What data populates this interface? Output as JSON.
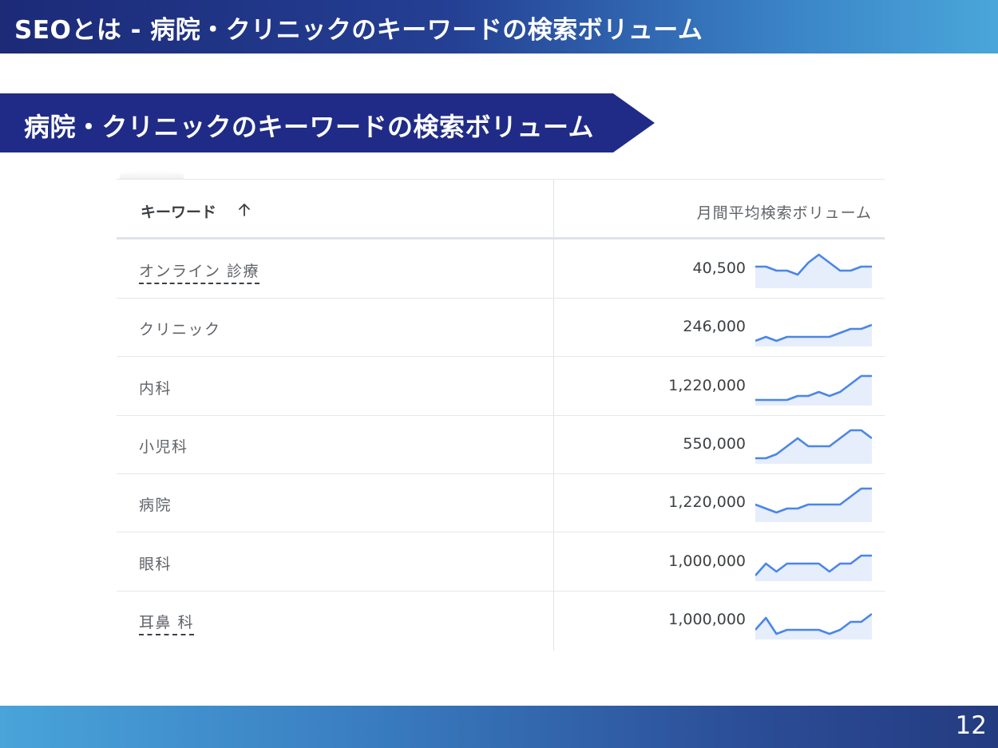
{
  "header": {
    "title": "SEOとは - 病院・クリニックのキーワードの検索ボリューム"
  },
  "banner": {
    "title": "病院・クリニックのキーワードの検索ボリューム"
  },
  "table": {
    "headers": {
      "keyword": "キーワード",
      "volume": "月間平均検索ボリューム"
    },
    "sort_icon": "arrow-up-icon",
    "accent_color": "#4a86e8",
    "trend_fill_color": "#e6edfb",
    "rows": [
      {
        "keyword": "オンライン 診療",
        "volume": "40,500",
        "dashed": true,
        "trend": [
          5,
          5,
          4,
          4,
          3,
          6,
          8,
          6,
          4,
          4,
          5,
          5
        ]
      },
      {
        "keyword": "クリニック",
        "volume": "246,000",
        "dashed": false,
        "trend": [
          1,
          2,
          1,
          2,
          2,
          2,
          2,
          2,
          3,
          4,
          4,
          5
        ]
      },
      {
        "keyword": "内科",
        "volume": "1,220,000",
        "dashed": false,
        "trend": [
          1,
          1,
          1,
          1,
          2,
          2,
          3,
          2,
          3,
          5,
          7,
          7
        ]
      },
      {
        "keyword": "小児科",
        "volume": "550,000",
        "dashed": false,
        "trend": [
          1,
          1,
          2,
          4,
          6,
          4,
          4,
          4,
          6,
          8,
          8,
          6
        ]
      },
      {
        "keyword": "病院",
        "volume": "1,220,000",
        "dashed": false,
        "trend": [
          4,
          3,
          2,
          3,
          3,
          4,
          4,
          4,
          4,
          6,
          8,
          8
        ]
      },
      {
        "keyword": "眼科",
        "volume": "1,000,000",
        "dashed": false,
        "trend": [
          1,
          4,
          2,
          4,
          4,
          4,
          4,
          2,
          4,
          4,
          6,
          6
        ]
      },
      {
        "keyword": "耳鼻 科",
        "volume": "1,000,000",
        "dashed": true,
        "trend": [
          2,
          5,
          1,
          2,
          2,
          2,
          2,
          1,
          2,
          4,
          4,
          6
        ]
      }
    ]
  },
  "footer": {
    "page_number": "12"
  }
}
